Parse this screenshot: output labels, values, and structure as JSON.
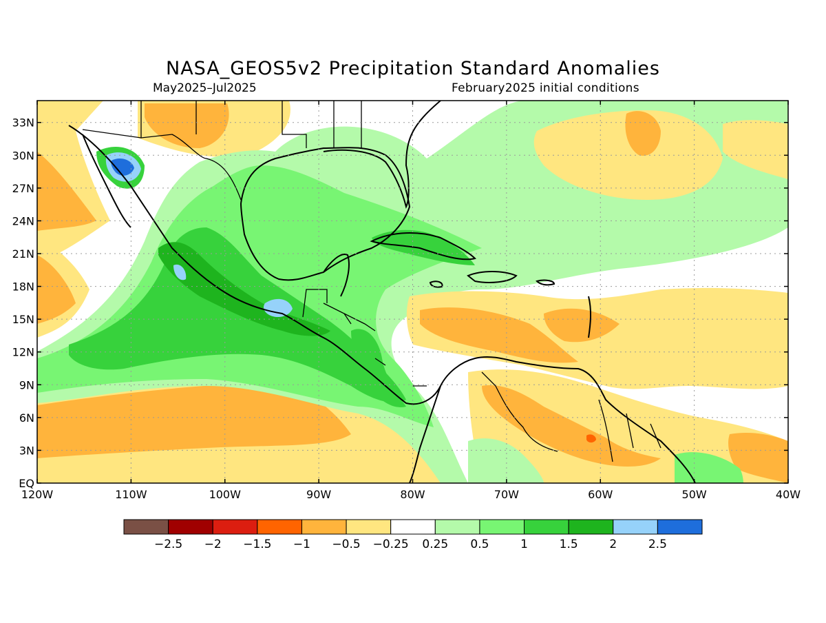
{
  "title": "NASA_GEOS5v2 Precipitation Standard Anomalies",
  "subtitle_left": "May2025–Jul2025",
  "subtitle_right": "February2025 initial conditions",
  "map": {
    "lon_range": [
      -120,
      -40
    ],
    "lat_range": [
      0,
      35
    ],
    "lat_ticks": [
      {
        "value": 33,
        "label": "33N"
      },
      {
        "value": 30,
        "label": "30N"
      },
      {
        "value": 27,
        "label": "27N"
      },
      {
        "value": 24,
        "label": "24N"
      },
      {
        "value": 21,
        "label": "21N"
      },
      {
        "value": 18,
        "label": "18N"
      },
      {
        "value": 15,
        "label": "15N"
      },
      {
        "value": 12,
        "label": "12N"
      },
      {
        "value": 9,
        "label": "9N"
      },
      {
        "value": 6,
        "label": "6N"
      },
      {
        "value": 3,
        "label": "3N"
      },
      {
        "value": 0,
        "label": "EQ"
      }
    ],
    "lon_ticks": [
      {
        "value": -120,
        "label": "120W"
      },
      {
        "value": -110,
        "label": "110W"
      },
      {
        "value": -100,
        "label": "100W"
      },
      {
        "value": -90,
        "label": "90W"
      },
      {
        "value": -80,
        "label": "80W"
      },
      {
        "value": -70,
        "label": "70W"
      },
      {
        "value": -60,
        "label": "60W"
      },
      {
        "value": -50,
        "label": "50W"
      },
      {
        "value": -40,
        "label": "40W"
      }
    ],
    "grid": true
  },
  "colorbar": {
    "colors": [
      "#7a5045",
      "#a00000",
      "#dc1e10",
      "#ff6400",
      "#ffb43c",
      "#ffe680",
      "#ffffff",
      "#b4faaa",
      "#78f573",
      "#37d23c",
      "#1eb41e",
      "#96d2fa",
      "#1e6edc"
    ],
    "labels": [
      "−2.5",
      "−2",
      "−1.5",
      "−1",
      "−0.5",
      "−0.25",
      "0.25",
      "0.5",
      "1",
      "1.5",
      "2",
      "2.5"
    ]
  }
}
